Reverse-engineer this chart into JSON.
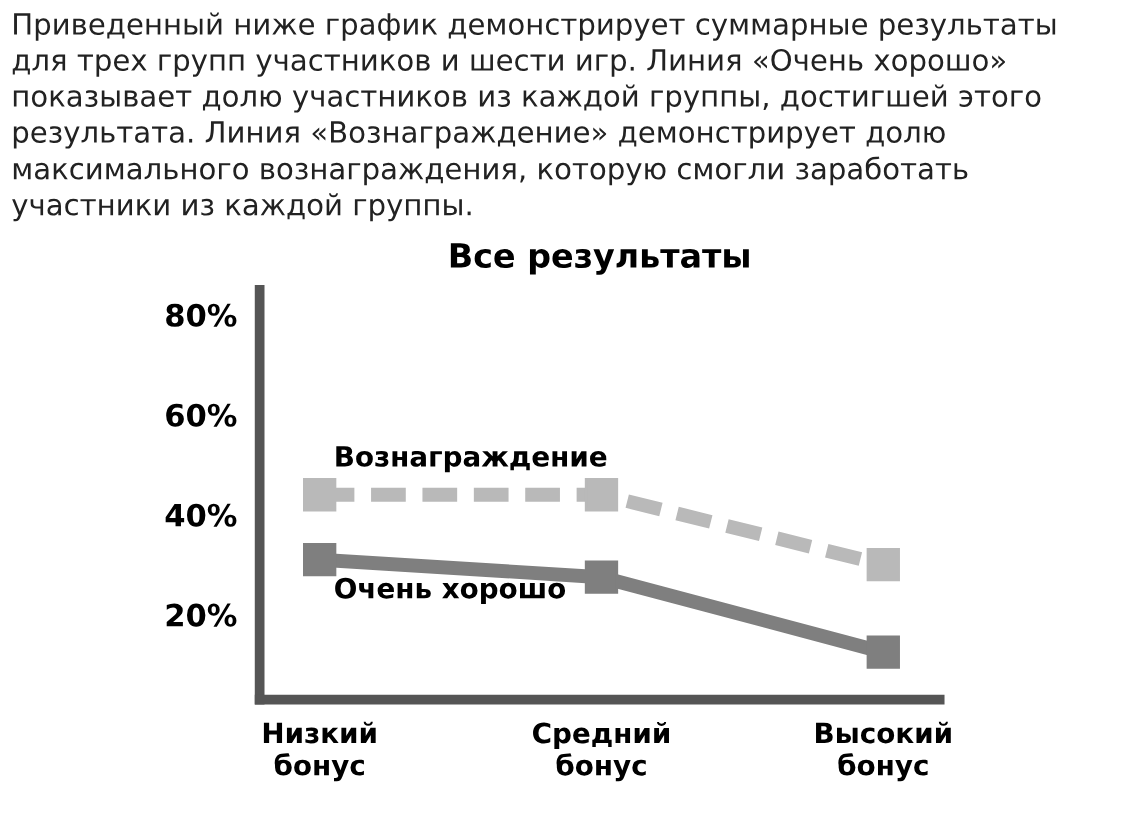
{
  "chart_data": {
    "type": "line",
    "title": "Все результаты",
    "annotations": [
      "Приведенный ниже график демонстрирует суммарные результаты для трех групп участников и шести игр. Линия «Очень хорошо» показывает долю участников из каждой группы, достигшей этого результата. Линия «Вознаграждение» демонстрирует долю максимального вознаграждения, которую смогли заработать участники из каждой группы."
    ],
    "categories": [
      "Низкий\nбонус",
      "Средний\nбонус",
      "Высокий\nбонус"
    ],
    "series": [
      {
        "name": "Вознаграждение",
        "color": "#b9b9b9",
        "values": [
          44,
          44,
          30
        ],
        "line_style": "dashed"
      },
      {
        "name": "Очень хорошо",
        "color": "#7f7f7f",
        "values": [
          31,
          27.5,
          12.5
        ],
        "line_style": "solid"
      }
    ],
    "ylim": [
      3,
      85
    ],
    "yticks": [
      {
        "value": 20,
        "label": "20%"
      },
      {
        "value": 40,
        "label": "40%"
      },
      {
        "value": 60,
        "label": "60%"
      },
      {
        "value": 80,
        "label": "80%"
      }
    ],
    "marker": "square",
    "grid": false,
    "legend": false
  }
}
